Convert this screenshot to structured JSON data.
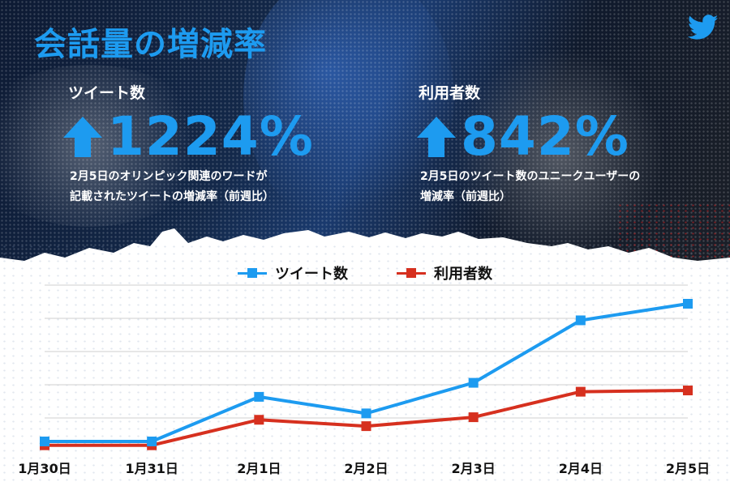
{
  "title": "会話量の増減率",
  "brand": {
    "icon": "twitter-bird-icon",
    "color": "#1d9bf0"
  },
  "stats": [
    {
      "label": "ツイート数",
      "value": "1224%",
      "arrow": "up-arrow-icon",
      "description_lines": [
        "2月5日のオリンピック関連のワードが",
        "記載されたツイートの増減率（前週比）"
      ]
    },
    {
      "label": "利用者数",
      "value": "842%",
      "arrow": "up-arrow-icon",
      "description_lines": [
        "2月5日のツイート数のユニークユーザーの",
        "増減率（前週比）"
      ]
    }
  ],
  "chart_data": {
    "type": "line",
    "categories": [
      "1月30日",
      "1月31日",
      "2月1日",
      "2月2日",
      "2月3日",
      "2月4日",
      "2月5日"
    ],
    "series": [
      {
        "name": "ツイート数",
        "color": "#1d9bf0",
        "values": [
          0,
          0,
          1.75,
          1.1,
          2.3,
          4.75,
          5.4
        ]
      },
      {
        "name": "利用者数",
        "color": "#d6301f",
        "values": [
          -0.15,
          -0.15,
          0.85,
          0.6,
          0.95,
          1.95,
          2.0
        ]
      }
    ],
    "ylim": [
      -0.3,
      5.4
    ],
    "grid": true,
    "legend": "top-center",
    "title": "",
    "xlabel": "",
    "ylabel": ""
  }
}
